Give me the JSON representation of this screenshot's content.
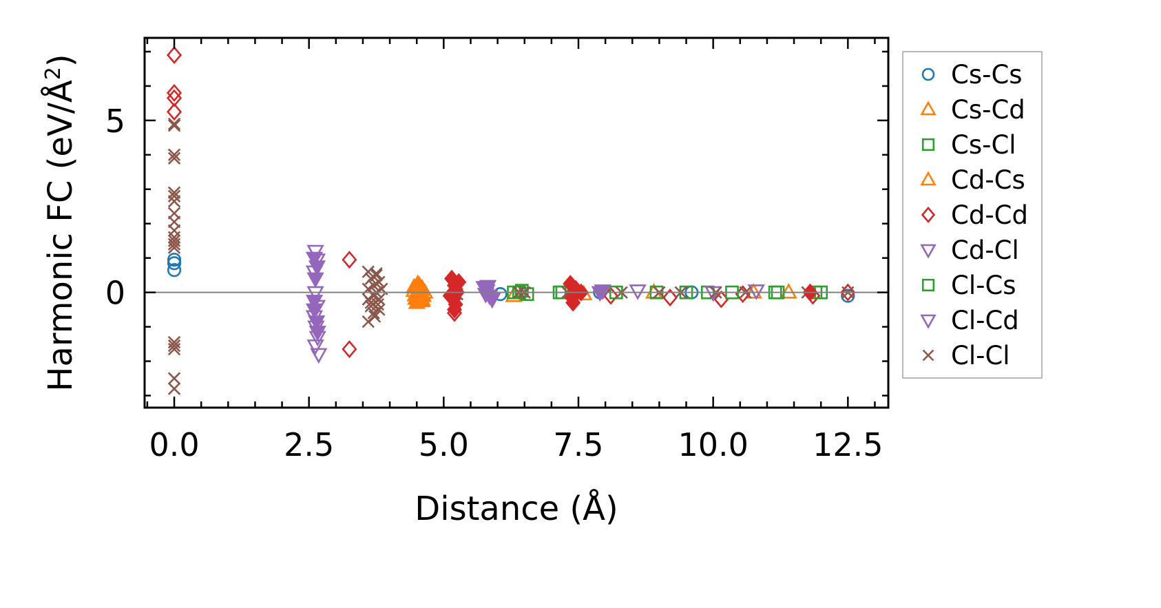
{
  "chart_data": {
    "type": "scatter",
    "title": "",
    "xlabel": "Distance (Å)",
    "ylabel": "Harmonic FC (eV/Å²)",
    "ylabel_parts": {
      "main": "Harmonic FC (eV/Å",
      "sup": "2",
      "close": ")"
    },
    "xlim": [
      -0.55,
      13.25
    ],
    "ylim": [
      -3.35,
      7.4
    ],
    "xticks": [
      0.0,
      2.5,
      5.0,
      7.5,
      10.0,
      12.5
    ],
    "xtick_labels": [
      "0.0",
      "2.5",
      "5.0",
      "7.5",
      "10.0",
      "12.5"
    ],
    "yticks": [
      0,
      5
    ],
    "ytick_labels": [
      "0",
      "5"
    ],
    "grid": false,
    "reference_line_y": 0,
    "legend_position": "outside-right",
    "series": [
      {
        "name": "Cs-Cs",
        "color": "#1f77b4",
        "marker": "circle",
        "filled": false,
        "points": [
          [
            0,
            0.95
          ],
          [
            0,
            0.85
          ],
          [
            0,
            0.65
          ],
          [
            6.05,
            -0.05
          ],
          [
            7.9,
            0.0
          ],
          [
            9.6,
            0.0
          ],
          [
            12.5,
            -0.1
          ]
        ]
      },
      {
        "name": "Cs-Cd",
        "color": "#ff7f0e",
        "marker": "triangle-up",
        "filled": false,
        "points": [
          [
            4.45,
            0.05
          ],
          [
            4.5,
            -0.15
          ],
          [
            4.55,
            0.1
          ],
          [
            4.6,
            -0.2
          ],
          [
            4.65,
            0.0
          ],
          [
            6.3,
            -0.1
          ],
          [
            7.6,
            -0.05
          ],
          [
            8.9,
            0.0
          ],
          [
            10.75,
            0.0
          ],
          [
            11.4,
            0.0
          ]
        ]
      },
      {
        "name": "Cs-Cl",
        "color": "#2ca02c",
        "marker": "square",
        "filled": false,
        "points": [
          [
            6.3,
            0.0
          ],
          [
            6.45,
            0.05
          ],
          [
            6.55,
            -0.05
          ],
          [
            7.15,
            0.0
          ],
          [
            8.95,
            0.0
          ],
          [
            9.9,
            0.0
          ],
          [
            11.2,
            0.0
          ],
          [
            12.0,
            0.0
          ]
        ]
      },
      {
        "name": "Cd-Cs",
        "color": "#ff7f0e",
        "marker": "triangle-up",
        "filled": true,
        "points": [
          [
            4.45,
            0.15
          ],
          [
            4.5,
            -0.3
          ],
          [
            4.55,
            0.2
          ],
          [
            4.6,
            -0.25
          ],
          [
            4.5,
            0.0
          ],
          [
            4.58,
            0.08
          ],
          [
            4.62,
            -0.1
          ],
          [
            4.48,
            -0.18
          ],
          [
            4.55,
            -0.05
          ],
          [
            4.6,
            0.12
          ],
          [
            4.52,
            0.25
          ],
          [
            4.47,
            -0.08
          ]
        ]
      },
      {
        "name": "Cd-Cd",
        "color": "#d62728",
        "marker": "diamond",
        "filled": false,
        "points": [
          [
            0,
            6.9
          ],
          [
            0,
            5.8
          ],
          [
            0,
            5.65
          ],
          [
            0,
            5.25
          ],
          [
            3.25,
            0.95
          ],
          [
            3.25,
            -1.65
          ],
          [
            5.2,
            -0.6
          ],
          [
            7.4,
            0.0
          ],
          [
            8.1,
            -0.1
          ],
          [
            9.2,
            -0.15
          ],
          [
            10.15,
            -0.2
          ],
          [
            10.55,
            -0.05
          ],
          [
            11.85,
            -0.1
          ],
          [
            12.5,
            0.0
          ]
        ]
      },
      {
        "name": "Cd-Cl",
        "color": "#9467bd",
        "marker": "triangle-down",
        "filled": false,
        "points": [
          [
            2.62,
            1.2
          ],
          [
            2.65,
            0.95
          ],
          [
            2.6,
            0.6
          ],
          [
            2.62,
            0.0
          ],
          [
            2.65,
            -0.4
          ],
          [
            2.6,
            -0.7
          ],
          [
            2.63,
            -1.0
          ],
          [
            2.66,
            -1.3
          ],
          [
            2.62,
            -1.55
          ],
          [
            2.68,
            -1.8
          ],
          [
            5.25,
            0.15
          ],
          [
            8.6,
            0.05
          ],
          [
            10.0,
            0.0
          ],
          [
            10.8,
            0.05
          ]
        ]
      },
      {
        "name": "Cl-Cs",
        "color": "#2ca02c",
        "marker": "square",
        "filled": false,
        "points": [
          [
            6.4,
            0.0
          ],
          [
            7.2,
            0.0
          ],
          [
            8.2,
            0.0
          ],
          [
            9.5,
            0.0
          ],
          [
            10.35,
            0.0
          ],
          [
            11.15,
            0.0
          ],
          [
            11.9,
            0.0
          ]
        ]
      },
      {
        "name": "Cl-Cd",
        "color": "#9467bd",
        "marker": "triangle-down",
        "filled": true,
        "points": [
          [
            2.6,
            1.0
          ],
          [
            2.65,
            0.75
          ],
          [
            2.62,
            0.4
          ],
          [
            2.6,
            -0.5
          ],
          [
            2.64,
            -0.85
          ],
          [
            2.66,
            -1.15
          ],
          [
            2.6,
            -0.25
          ],
          [
            5.75,
            0.15
          ],
          [
            5.8,
            0.05
          ],
          [
            5.85,
            -0.1
          ],
          [
            5.9,
            -0.2
          ],
          [
            5.82,
            0.18
          ],
          [
            5.78,
            -0.05
          ],
          [
            7.9,
            0.0
          ],
          [
            7.95,
            0.05
          ]
        ]
      },
      {
        "name": "Cl-Cl",
        "color": "#8c564b",
        "marker": "x",
        "filled": false,
        "points": [
          [
            0,
            4.9
          ],
          [
            0,
            4.85
          ],
          [
            0,
            4.0
          ],
          [
            0,
            3.9
          ],
          [
            0,
            2.9
          ],
          [
            0,
            2.8
          ],
          [
            0,
            2.65
          ],
          [
            0,
            2.3
          ],
          [
            0,
            2.05
          ],
          [
            0,
            1.8
          ],
          [
            0,
            1.6
          ],
          [
            0,
            1.5
          ],
          [
            0,
            1.4
          ],
          [
            0,
            1.3
          ],
          [
            0,
            -1.45
          ],
          [
            0,
            -1.55
          ],
          [
            0,
            -1.65
          ],
          [
            0,
            -2.5
          ],
          [
            0,
            -2.8
          ],
          [
            3.6,
            0.6
          ],
          [
            3.65,
            0.4
          ],
          [
            3.7,
            0.2
          ],
          [
            3.75,
            0.0
          ],
          [
            3.8,
            -0.2
          ],
          [
            3.65,
            -0.4
          ],
          [
            3.7,
            -0.6
          ],
          [
            3.6,
            -0.85
          ],
          [
            3.75,
            0.5
          ],
          [
            3.8,
            0.3
          ],
          [
            3.6,
            0.1
          ],
          [
            3.7,
            -0.1
          ],
          [
            3.65,
            -0.3
          ],
          [
            3.8,
            -0.5
          ],
          [
            3.75,
            0.55
          ],
          [
            3.85,
            0.1
          ],
          [
            3.6,
            -0.2
          ],
          [
            3.72,
            -0.7
          ],
          [
            3.78,
            -0.35
          ],
          [
            5.2,
            0.1
          ],
          [
            5.25,
            -0.05
          ],
          [
            6.4,
            0.0
          ],
          [
            6.5,
            0.0
          ],
          [
            7.3,
            0.0
          ],
          [
            8.3,
            0.0
          ],
          [
            9.0,
            0.0
          ],
          [
            9.4,
            0.0
          ],
          [
            10.05,
            0.0
          ],
          [
            10.6,
            0.0
          ],
          [
            11.75,
            0.0
          ],
          [
            12.5,
            0.0
          ]
        ]
      },
      {
        "name": "",
        "color": "#d62728",
        "marker": "diamond",
        "filled": true,
        "points": [
          [
            5.15,
            0.4
          ],
          [
            5.2,
            0.2
          ],
          [
            5.25,
            0.0
          ],
          [
            5.18,
            -0.2
          ],
          [
            5.22,
            -0.35
          ],
          [
            5.2,
            -0.5
          ],
          [
            5.28,
            0.3
          ],
          [
            5.12,
            -0.1
          ],
          [
            7.35,
            0.25
          ],
          [
            7.4,
            -0.3
          ],
          [
            7.45,
            0.1
          ],
          [
            7.38,
            -0.15
          ],
          [
            7.55,
            0.0
          ],
          [
            11.8,
            0.0
          ]
        ]
      }
    ],
    "legend_entries": [
      {
        "label": "Cs-Cs",
        "color": "#1f77b4",
        "marker": "circle"
      },
      {
        "label": "Cs-Cd",
        "color": "#ff7f0e",
        "marker": "triangle-up"
      },
      {
        "label": "Cs-Cl",
        "color": "#2ca02c",
        "marker": "square"
      },
      {
        "label": "Cd-Cs",
        "color": "#ff7f0e",
        "marker": "triangle-up"
      },
      {
        "label": "Cd-Cd",
        "color": "#d62728",
        "marker": "diamond"
      },
      {
        "label": "Cd-Cl",
        "color": "#9467bd",
        "marker": "triangle-down"
      },
      {
        "label": "Cl-Cs",
        "color": "#2ca02c",
        "marker": "square"
      },
      {
        "label": "Cl-Cd",
        "color": "#9467bd",
        "marker": "triangle-down"
      },
      {
        "label": "Cl-Cl",
        "color": "#8c564b",
        "marker": "x"
      }
    ]
  }
}
